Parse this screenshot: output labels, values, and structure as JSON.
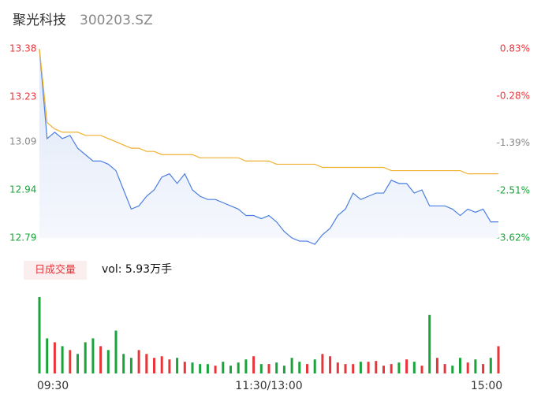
{
  "chart_data": {
    "type": "intraday",
    "title": "聚光科技",
    "subtitle": "300203.SZ",
    "xlim": [
      0,
      240
    ],
    "xticks": [
      {
        "value": 0,
        "label": "09:30"
      },
      {
        "value": 120,
        "label": "11:30/13:00"
      },
      {
        "value": 240,
        "label": "15:00"
      }
    ],
    "x": [
      0,
      4,
      8,
      12,
      16,
      20,
      24,
      28,
      32,
      36,
      40,
      44,
      48,
      52,
      56,
      60,
      64,
      68,
      72,
      76,
      80,
      84,
      88,
      92,
      96,
      100,
      104,
      108,
      112,
      116,
      120,
      124,
      128,
      132,
      136,
      140,
      144,
      148,
      152,
      156,
      160,
      164,
      168,
      172,
      176,
      180,
      184,
      188,
      192,
      196,
      200,
      204,
      208,
      212,
      216,
      220,
      224,
      228,
      232,
      236,
      240
    ],
    "ylim": [
      12.79,
      13.38
    ],
    "yticks": [
      12.79,
      12.94,
      13.09,
      13.23,
      13.38
    ],
    "ytick_colors": [
      "#1aa33a",
      "#1aa33a",
      "#888888",
      "#e8353a",
      "#e8353a"
    ],
    "y2lim": [
      -3.62,
      0.83
    ],
    "y2ticks": [
      {
        "value": -3.62,
        "label": "-3.62%"
      },
      {
        "value": -2.51,
        "label": "-2.51%"
      },
      {
        "value": -1.39,
        "label": "-1.39%"
      },
      {
        "value": -0.28,
        "label": "-0.28%"
      },
      {
        "value": 0.83,
        "label": "0.83%"
      }
    ],
    "series": [
      {
        "name": "price",
        "color": "#4a7fe0",
        "values": [
          13.38,
          13.1,
          13.12,
          13.1,
          13.11,
          13.07,
          13.05,
          13.03,
          13.03,
          13.02,
          13.0,
          12.94,
          12.88,
          12.89,
          12.92,
          12.94,
          12.98,
          12.99,
          12.96,
          12.99,
          12.94,
          12.92,
          12.91,
          12.91,
          12.9,
          12.89,
          12.88,
          12.86,
          12.86,
          12.85,
          12.86,
          12.84,
          12.81,
          12.79,
          12.78,
          12.78,
          12.77,
          12.8,
          12.82,
          12.86,
          12.88,
          12.93,
          12.91,
          12.92,
          12.93,
          12.93,
          12.97,
          12.96,
          12.96,
          12.93,
          12.94,
          12.89,
          12.89,
          12.89,
          12.88,
          12.86,
          12.88,
          12.87,
          12.88,
          12.84,
          12.84
        ]
      },
      {
        "name": "average",
        "color": "#f0b030",
        "values": [
          13.38,
          13.15,
          13.13,
          13.12,
          13.12,
          13.12,
          13.11,
          13.11,
          13.11,
          13.1,
          13.09,
          13.08,
          13.07,
          13.07,
          13.06,
          13.06,
          13.05,
          13.05,
          13.05,
          13.05,
          13.05,
          13.04,
          13.04,
          13.04,
          13.04,
          13.04,
          13.04,
          13.03,
          13.03,
          13.03,
          13.03,
          13.02,
          13.02,
          13.02,
          13.02,
          13.02,
          13.02,
          13.01,
          13.01,
          13.01,
          13.01,
          13.01,
          13.01,
          13.01,
          13.01,
          13.01,
          13.0,
          13.0,
          13.0,
          13.0,
          13.0,
          13.0,
          13.0,
          13.0,
          13.0,
          13.0,
          12.99,
          12.99,
          12.99,
          12.99,
          12.99
        ]
      }
    ],
    "volume_title": "日成交量",
    "volume_label": "vol: 5.93万手",
    "volume_up_color": "#e8353a",
    "volume_down_color": "#1aa33a",
    "volumes": [
      98,
      45,
      40,
      35,
      30,
      25,
      40,
      45,
      35,
      30,
      55,
      25,
      20,
      30,
      25,
      20,
      22,
      18,
      20,
      15,
      14,
      12,
      12,
      10,
      15,
      10,
      14,
      18,
      22,
      12,
      12,
      14,
      10,
      20,
      15,
      12,
      18,
      25,
      22,
      14,
      12,
      12,
      15,
      15,
      16,
      10,
      12,
      14,
      18,
      15,
      10,
      75,
      20,
      12,
      10,
      20,
      14,
      18,
      12,
      20,
      35
    ]
  }
}
